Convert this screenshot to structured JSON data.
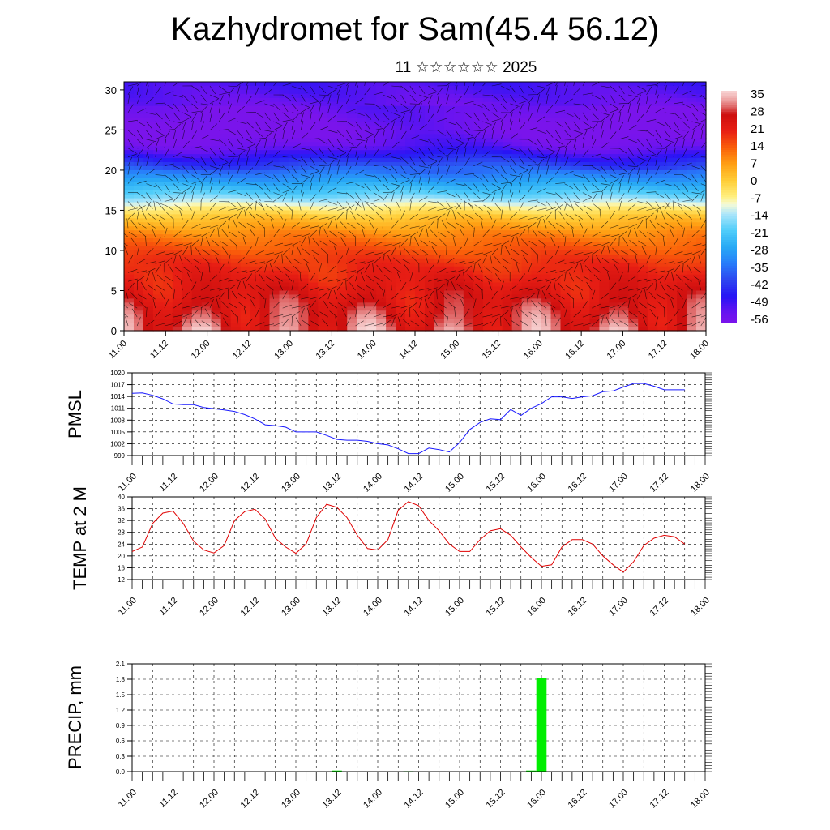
{
  "title": "Kazhydromet for Sam(45.4 56.12)",
  "subtitle": "11 ☆☆☆☆☆☆ 2025",
  "colors": {
    "pmsl_line": "#1a1aff",
    "temp_line": "#e00000",
    "precip_bar": "#00ee00"
  },
  "chart_data": [
    {
      "type": "heatmap",
      "name": "vertical cross-section",
      "x_tick_labels": [
        "11.00",
        "11.12",
        "12.00",
        "12.12",
        "13.00",
        "13.12",
        "14.00",
        "14.12",
        "15.00",
        "15.12",
        "16.00",
        "16.12",
        "17.00",
        "17.12",
        "18.00"
      ],
      "y_tick_labels": [
        "0",
        "5",
        "10",
        "15",
        "20",
        "25",
        "30"
      ],
      "ylim": [
        0,
        31
      ],
      "colorbar_labels": [
        "35",
        "28",
        "21",
        "14",
        "7",
        "0",
        "-7",
        "-14",
        "-21",
        "-28",
        "-35",
        "-42",
        "-49",
        "-56"
      ],
      "colorbar_range": [
        -60,
        38
      ],
      "level_profile": [
        {
          "level": 0,
          "value": 30
        },
        {
          "level": 5,
          "value": 24
        },
        {
          "level": 9,
          "value": 18
        },
        {
          "level": 12,
          "value": 10
        },
        {
          "level": 14,
          "value": 2
        },
        {
          "level": 15.5,
          "value": -8
        },
        {
          "level": 17,
          "value": -20
        },
        {
          "level": 19,
          "value": -32
        },
        {
          "level": 21,
          "value": -44
        },
        {
          "level": 23,
          "value": -56
        },
        {
          "level": 25,
          "value": -60
        },
        {
          "level": 27,
          "value": -58
        },
        {
          "level": 31,
          "value": -52
        }
      ]
    },
    {
      "type": "line",
      "ylabel": "PMSL",
      "x_tick_labels": [
        "11.00",
        "11.12",
        "12.00",
        "12.12",
        "13.00",
        "13.12",
        "14.00",
        "14.12",
        "15.00",
        "15.12",
        "16.00",
        "16.12",
        "17.00",
        "17.12",
        "18.00"
      ],
      "y_tick_labels": [
        "999",
        "1002",
        "1005",
        "1008",
        "1011",
        "1014",
        "1017",
        "1020"
      ],
      "ylim": [
        999,
        1020
      ],
      "xlim": [
        0,
        168
      ],
      "series": [
        {
          "x": [
            0,
            3,
            6,
            9,
            12,
            15,
            18,
            21,
            24,
            27,
            30,
            33,
            36,
            39,
            42,
            45,
            48,
            51,
            54,
            57,
            60,
            63,
            66,
            69,
            72,
            75,
            78,
            81,
            84,
            87,
            90,
            93,
            96,
            99,
            102,
            105,
            108,
            111,
            114,
            117,
            120,
            123,
            126,
            129,
            132,
            135,
            138,
            141,
            144,
            147,
            150,
            153,
            156,
            159,
            162
          ],
          "y": [
            1014.8,
            1014.9,
            1014.3,
            1013.4,
            1012.1,
            1011.9,
            1011.9,
            1011.2,
            1010.9,
            1010.6,
            1010.2,
            1009.4,
            1008.3,
            1006.8,
            1006.6,
            1006.2,
            1005,
            1005,
            1005,
            1004.1,
            1003.1,
            1002.9,
            1002.9,
            1002.6,
            1002,
            1001.7,
            1000.7,
            999.5,
            999.5,
            1000.9,
            1000.5,
            999.9,
            1002.3,
            1005.6,
            1007.4,
            1008.3,
            1008.1,
            1010.7,
            1009.2,
            1011.0,
            1012.2,
            1013.9,
            1013.9,
            1013.5,
            1013.9,
            1014.2,
            1015.2,
            1015.4,
            1016.4,
            1017.3,
            1017.3,
            1016.6,
            1015.7,
            1015.7,
            1015.7
          ]
        }
      ]
    },
    {
      "type": "line",
      "ylabel": "TEMP at 2 M",
      "x_tick_labels": [
        "11.00",
        "11.12",
        "12.00",
        "12.12",
        "13.00",
        "13.12",
        "14.00",
        "14.12",
        "15.00",
        "15.12",
        "16.00",
        "16.12",
        "17.00",
        "17.12",
        "18.00"
      ],
      "y_tick_labels": [
        "12",
        "16",
        "20",
        "24",
        "28",
        "32",
        "36",
        "40"
      ],
      "ylim": [
        12,
        40
      ],
      "xlim": [
        0,
        168
      ],
      "series": [
        {
          "x": [
            0,
            3,
            6,
            9,
            12,
            15,
            18,
            21,
            24,
            27,
            30,
            33,
            36,
            39,
            42,
            45,
            48,
            51,
            54,
            57,
            60,
            63,
            66,
            69,
            72,
            75,
            78,
            81,
            84,
            87,
            90,
            93,
            96,
            99,
            102,
            105,
            108,
            111,
            114,
            117,
            120,
            123,
            126,
            129,
            132,
            135,
            138,
            141,
            144,
            147,
            150,
            153,
            156,
            159,
            162
          ],
          "y": [
            21.5,
            23,
            31,
            34.5,
            35.2,
            31,
            25,
            22,
            21,
            23.5,
            32,
            35,
            35.8,
            32.5,
            26,
            23,
            20.9,
            24,
            33,
            37.5,
            36.5,
            33,
            27,
            22.5,
            22,
            25.5,
            35.5,
            38.4,
            37,
            32,
            28.5,
            24,
            21.5,
            21.5,
            25.5,
            28.5,
            29.2,
            27,
            23,
            19.5,
            16.5,
            17,
            23,
            25.5,
            25.5,
            24,
            20,
            17,
            14.5,
            18,
            23.5,
            26,
            27,
            26.5,
            24
          ]
        }
      ]
    },
    {
      "type": "bar",
      "ylabel": "PRECIP, mm",
      "x_tick_labels": [
        "11.00",
        "11.12",
        "12.00",
        "12.12",
        "13.00",
        "13.12",
        "14.00",
        "14.12",
        "15.00",
        "15.12",
        "16.00",
        "16.12",
        "17.00",
        "17.12",
        "18.00"
      ],
      "y_tick_labels": [
        "0.0",
        "0.3",
        "0.6",
        "0.9",
        "1.2",
        "1.5",
        "1.8",
        "2.1"
      ],
      "ylim": [
        0,
        2.1
      ],
      "xlim": [
        0,
        168
      ],
      "series": [
        {
          "x": [
            60,
            81,
            117,
            120
          ],
          "y": [
            0.02,
            0.01,
            0.02,
            1.83
          ]
        }
      ]
    }
  ]
}
